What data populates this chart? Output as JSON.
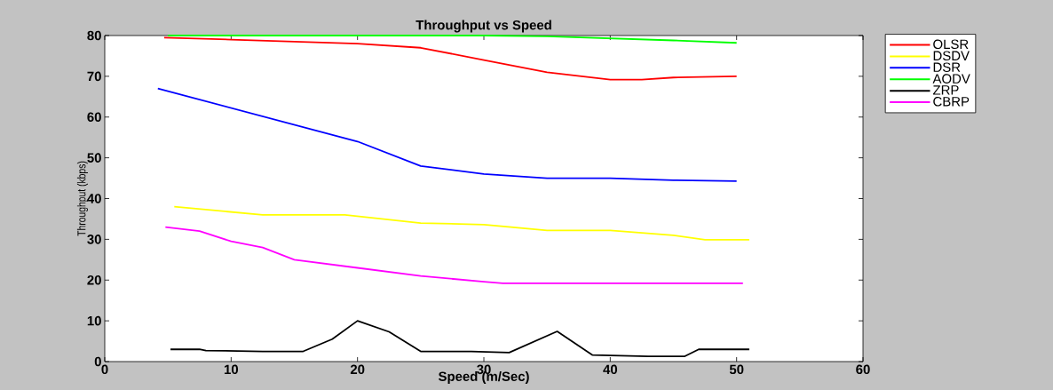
{
  "chart_data": {
    "type": "line",
    "title": "Throughput vs Speed",
    "xlabel": "Speed (m/Sec)",
    "ylabel": "Throughput (kbps)",
    "xlim": [
      0,
      60
    ],
    "ylim": [
      0,
      80
    ],
    "xticks": [
      0,
      10,
      20,
      30,
      40,
      50,
      60
    ],
    "yticks": [
      0,
      10,
      20,
      30,
      40,
      50,
      60,
      70,
      80
    ],
    "grid": false,
    "legend": "top right",
    "marker": "none",
    "line_style": "solid",
    "series": [
      {
        "name": "OLSR",
        "color": "#ff0000",
        "x": [
          4.7,
          10,
          20,
          25,
          30,
          35,
          40,
          42.5,
          45,
          50
        ],
        "values": [
          79.5,
          79,
          78,
          77,
          74,
          71,
          69.2,
          69.2,
          69.7,
          70
        ]
      },
      {
        "name": "DSDV",
        "color": "#ffff00",
        "x": [
          5.5,
          12.5,
          19,
          25,
          30,
          35,
          40,
          45,
          47.5,
          51
        ],
        "values": [
          38,
          36,
          36,
          34,
          33.6,
          32.2,
          32.2,
          31,
          29.9,
          29.9
        ]
      },
      {
        "name": "DSR",
        "color": "#0000ff",
        "x": [
          4.2,
          20,
          25,
          30,
          35,
          40,
          45,
          50
        ],
        "values": [
          67,
          54,
          48,
          46,
          45,
          45,
          44.5,
          44.3
        ]
      },
      {
        "name": "AODV",
        "color": "#00ff00",
        "x": [
          5,
          30,
          35,
          40,
          45,
          50
        ],
        "values": [
          80,
          80,
          79.8,
          79.3,
          78.8,
          78.2
        ]
      },
      {
        "name": "ZRP",
        "color": "#000000",
        "x": [
          5.2,
          7.5,
          8,
          12.5,
          15.7,
          18,
          20,
          22.5,
          25,
          29,
          32,
          35.8,
          38.6,
          43,
          45.9,
          47,
          51
        ],
        "values": [
          3,
          3,
          2.7,
          2.5,
          2.5,
          5.5,
          10,
          7.3,
          2.5,
          2.5,
          2.2,
          7.4,
          1.6,
          1.3,
          1.3,
          3,
          3
        ]
      },
      {
        "name": "CBRP",
        "color": "#ff00ff",
        "x": [
          4.8,
          7.5,
          10,
          12.5,
          15,
          20,
          25,
          30,
          31.5,
          50.5
        ],
        "values": [
          33,
          32,
          29.5,
          28,
          25,
          23,
          21,
          19.6,
          19.2,
          19.2
        ]
      }
    ]
  }
}
